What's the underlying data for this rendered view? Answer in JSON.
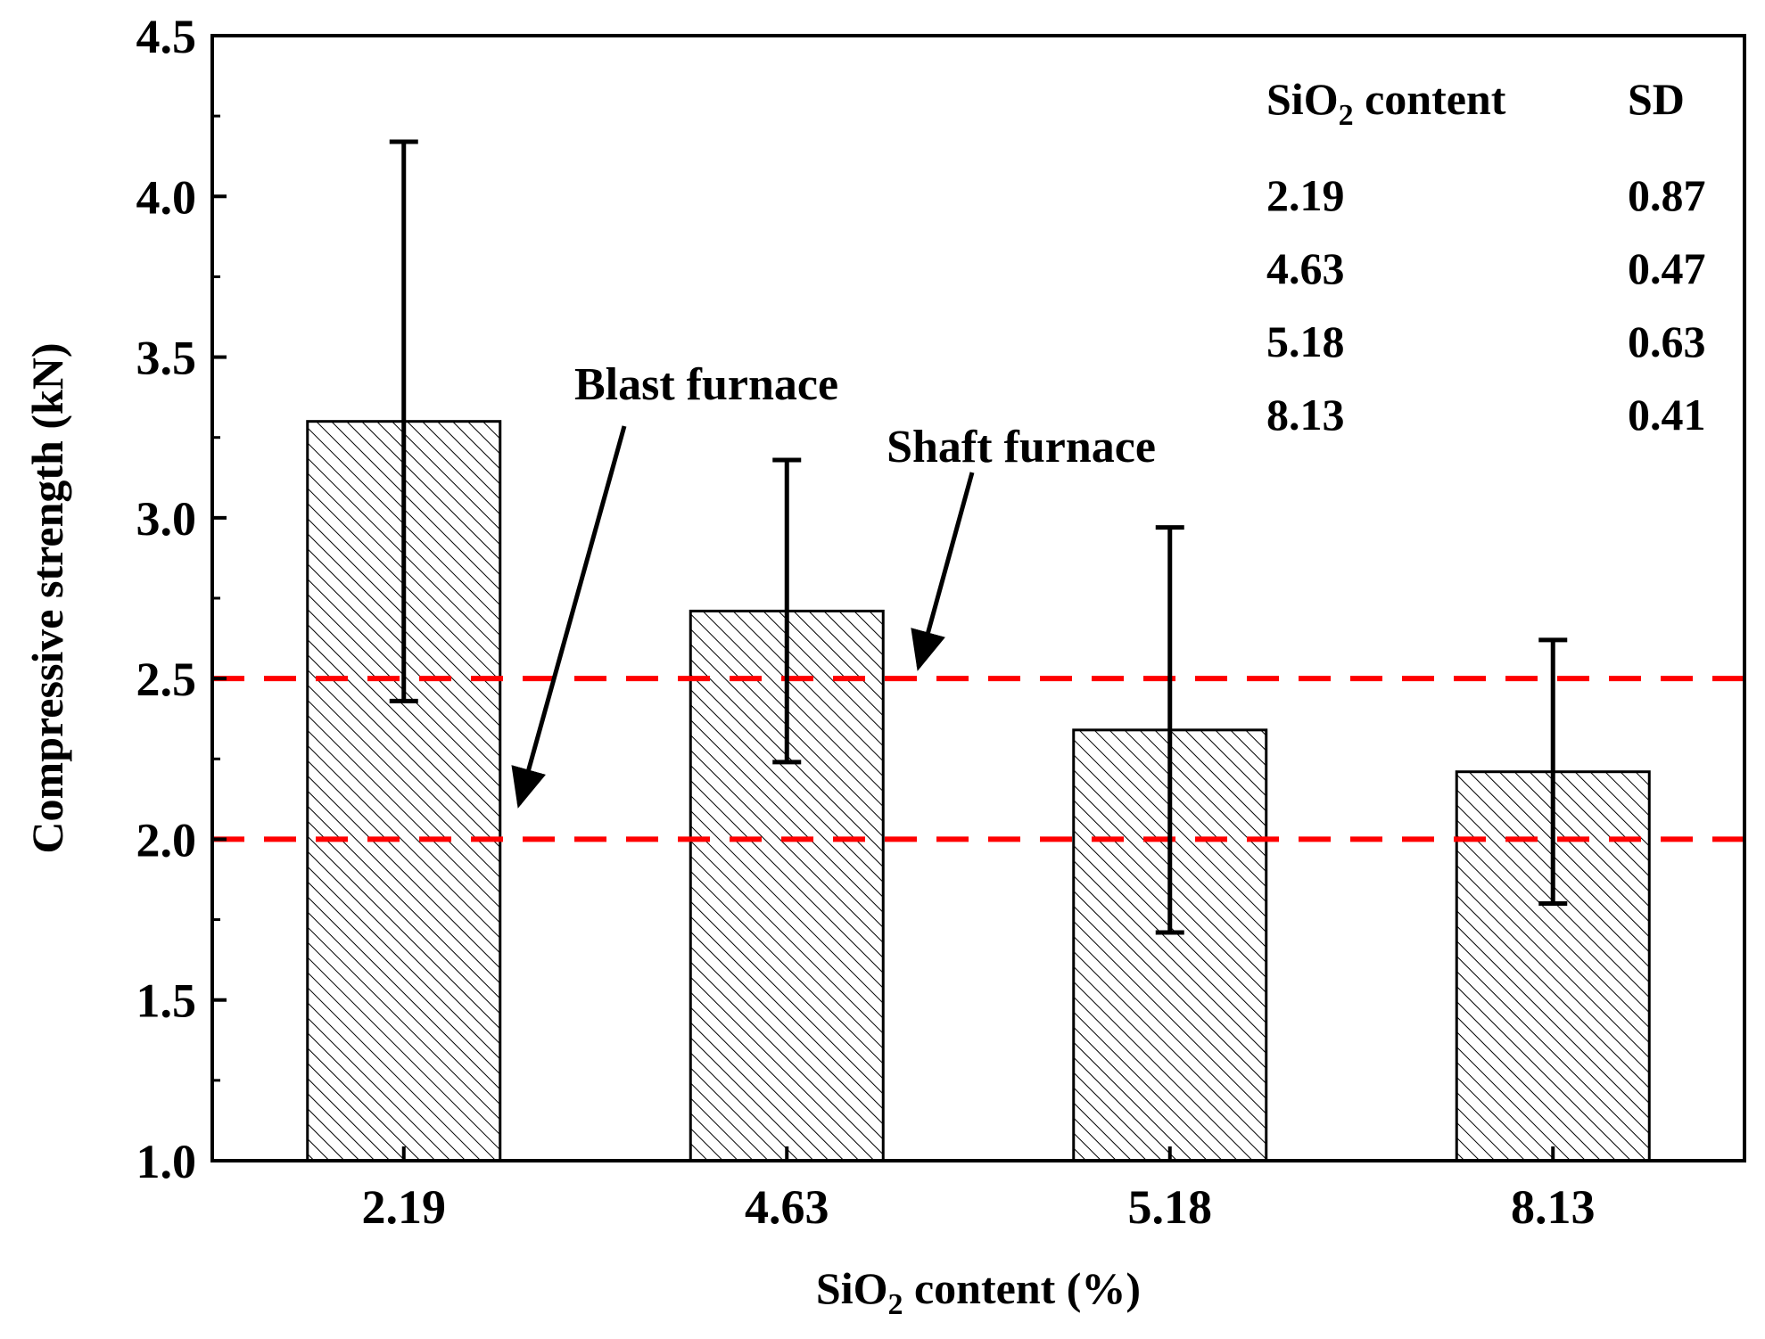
{
  "chart_data": {
    "type": "bar",
    "categories": [
      "2.19",
      "4.63",
      "5.18",
      "8.13"
    ],
    "values": [
      3.3,
      2.71,
      2.34,
      2.21
    ],
    "error_bars": {
      "upper": [
        4.17,
        3.18,
        2.97,
        2.62
      ],
      "lower": [
        2.43,
        2.24,
        1.71,
        1.8
      ]
    },
    "xlabel": {
      "prefix": "SiO",
      "sub": "2",
      "suffix": " content (%)"
    },
    "ylabel": "Compressive strength (kN)",
    "ylim": [
      1.0,
      4.5
    ],
    "yticks": [
      "1.0",
      "1.5",
      "2.0",
      "2.5",
      "3.0",
      "3.5",
      "4.0",
      "4.5"
    ],
    "bar_pattern": "diagonal-hatch",
    "reference_lines": [
      {
        "name": "Shaft furnace",
        "value": 2.5,
        "color": "#ff0000",
        "style": "dashed"
      },
      {
        "name": "Blast furnace",
        "value": 2.0,
        "color": "#ff0000",
        "style": "dashed"
      }
    ],
    "annotations": [
      {
        "text": "Blast furnace",
        "points_to": "2.0 line"
      },
      {
        "text": "Shaft furnace",
        "points_to": "2.5 line"
      }
    ],
    "sd_table": {
      "header_left": {
        "prefix": "SiO",
        "sub": "2",
        "suffix": " content"
      },
      "header_right": "SD",
      "rows": [
        {
          "content": "2.19",
          "sd": "0.87"
        },
        {
          "content": "4.63",
          "sd": "0.47"
        },
        {
          "content": "5.18",
          "sd": "0.63"
        },
        {
          "content": "8.13",
          "sd": "0.41"
        }
      ]
    }
  }
}
